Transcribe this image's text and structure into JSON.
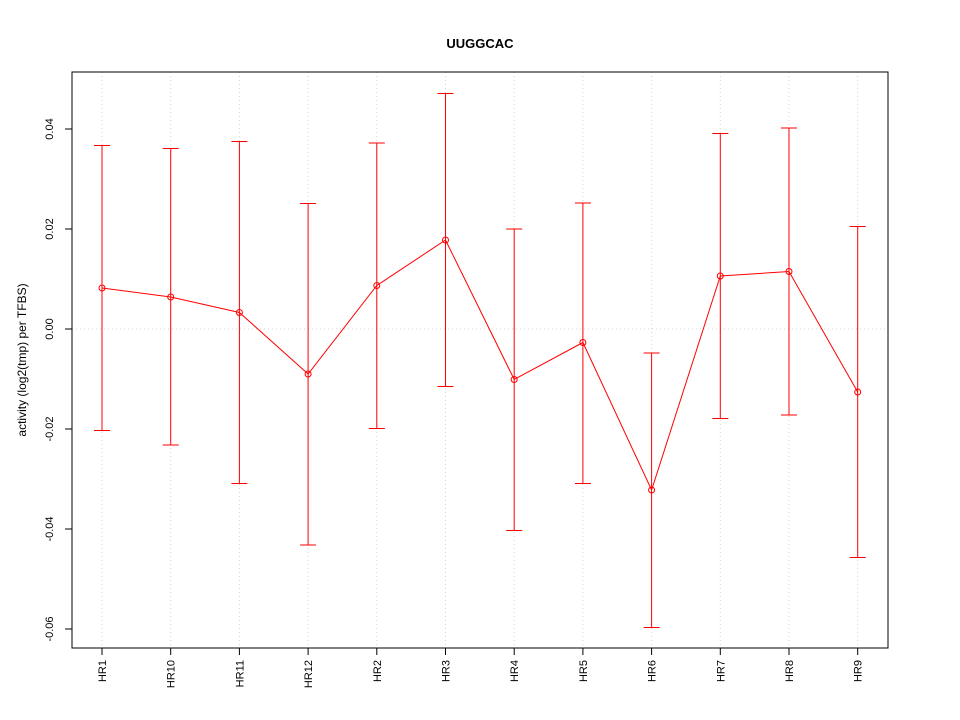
{
  "chart_data": {
    "type": "line",
    "title": "UUGGCAC",
    "xlabel": "",
    "ylabel": "activity (log2(tmp) per TFBS)",
    "categories": [
      "HR1",
      "HR10",
      "HR11",
      "HR12",
      "HR2",
      "HR3",
      "HR4",
      "HR5",
      "HR6",
      "HR7",
      "HR8",
      "HR9"
    ],
    "series": [
      {
        "values": [
          0.0082,
          0.0064,
          0.0033,
          -0.009,
          0.0087,
          0.0178,
          -0.0101,
          -0.0027,
          -0.0322,
          0.0106,
          0.0115,
          -0.0126
        ],
        "upper": [
          0.0367,
          0.0361,
          0.0375,
          0.0251,
          0.0372,
          0.0471,
          0.02,
          0.0252,
          -0.0048,
          0.0391,
          0.0402,
          0.0205
        ],
        "lower": [
          -0.0203,
          -0.0232,
          -0.0309,
          -0.0432,
          -0.0199,
          -0.0115,
          -0.0403,
          -0.0309,
          -0.0597,
          -0.0179,
          -0.0172,
          -0.0457
        ],
        "color": "#ff0000"
      }
    ],
    "yticks": [
      -0.06,
      -0.04,
      -0.02,
      0.0,
      0.02,
      0.04
    ],
    "ytick_labels": [
      "-0.06",
      "-0.04",
      "-0.02",
      "0.00",
      "0.02",
      "0.04"
    ],
    "ylim": [
      -0.0638,
      0.0514
    ],
    "grid": true,
    "grid_color": "#d3d3d3"
  }
}
